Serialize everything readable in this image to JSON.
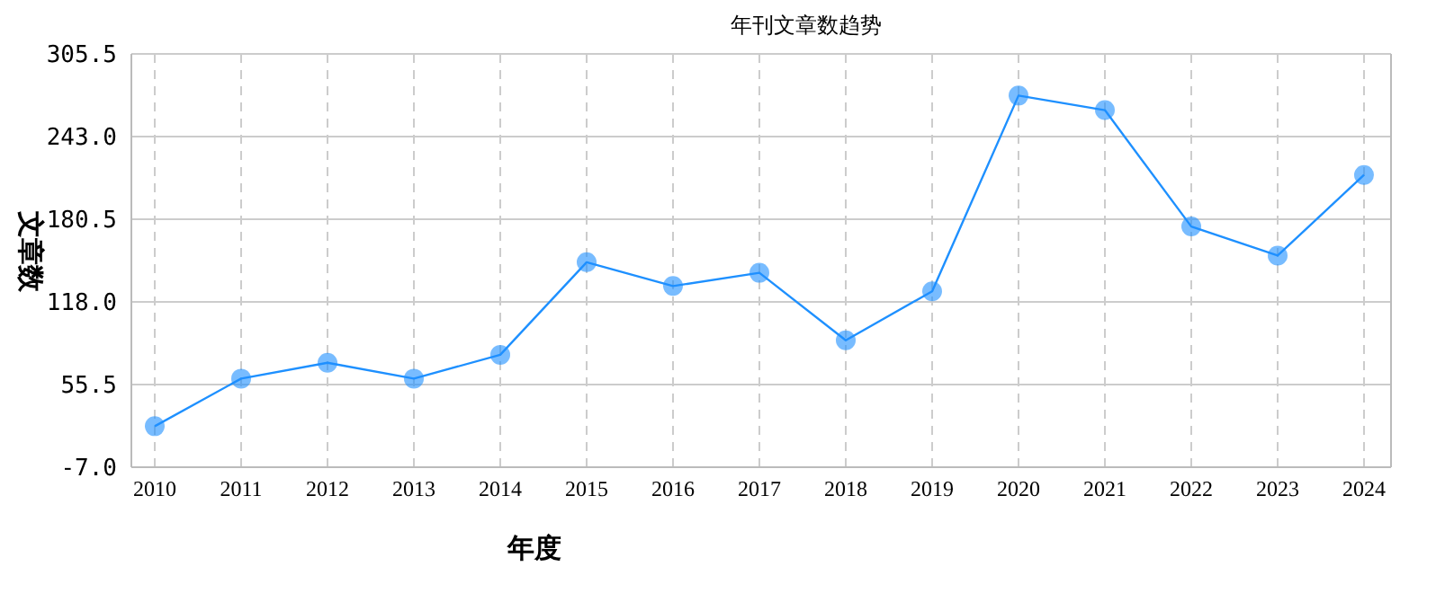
{
  "chart_data": {
    "type": "line",
    "title": "年刊文章数趋势",
    "xlabel": "年度",
    "ylabel": "文章数",
    "categories": [
      "2010",
      "2011",
      "2012",
      "2013",
      "2014",
      "2015",
      "2016",
      "2017",
      "2018",
      "2019",
      "2020",
      "2021",
      "2022",
      "2023",
      "2024"
    ],
    "series": [
      {
        "color": "#1e90ff",
        "values": [
          24,
          60,
          72,
          60,
          78,
          148,
          130,
          140,
          89,
          126,
          274,
          263,
          175,
          153,
          214
        ]
      }
    ],
    "ylim": [
      -7,
      305.5
    ],
    "yticks": [
      {
        "value": -7,
        "label": "-7.0"
      },
      55.5,
      {
        "value": 118,
        "label": "118.0"
      },
      180.5,
      {
        "value": 243,
        "label": "243.0"
      },
      305.5
    ],
    "grid": true,
    "marker": "circle",
    "line_style": "solid"
  }
}
